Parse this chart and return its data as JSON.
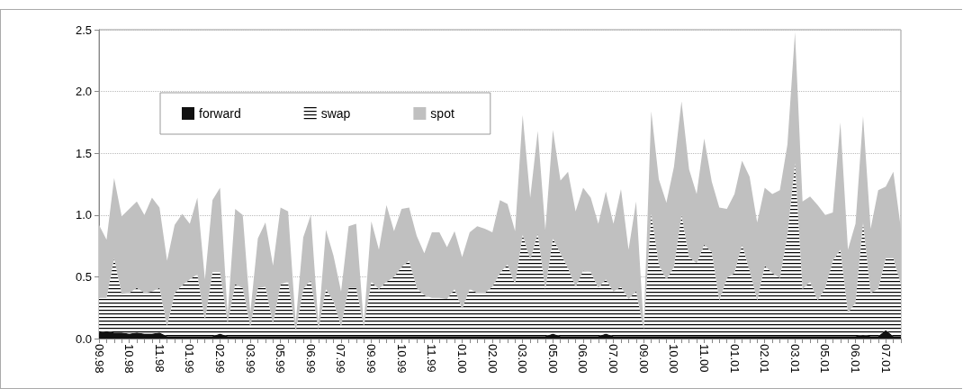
{
  "chart_data": {
    "type": "area",
    "stacked": true,
    "categories": [
      "09.98",
      null,
      null,
      null,
      "10.98",
      null,
      null,
      null,
      "11.98",
      null,
      null,
      null,
      "01.99",
      null,
      null,
      null,
      "02.99",
      null,
      null,
      null,
      "03.99",
      null,
      null,
      null,
      "05.99",
      null,
      null,
      null,
      "06.99",
      null,
      null,
      null,
      "07.99",
      null,
      null,
      null,
      "09.99",
      null,
      null,
      null,
      "10.99",
      null,
      null,
      null,
      "11.99",
      null,
      null,
      null,
      "01.00",
      null,
      null,
      null,
      "02.00",
      null,
      null,
      null,
      "03.00",
      null,
      null,
      null,
      "05.00",
      null,
      null,
      null,
      "06.00",
      null,
      null,
      null,
      "07.00",
      null,
      null,
      null,
      "09.00",
      null,
      null,
      null,
      "10.00",
      null,
      null,
      null,
      "11.00",
      null,
      null,
      null,
      "01.01",
      null,
      null,
      null,
      "02.01",
      null,
      null,
      null,
      "03.01",
      null,
      null,
      null,
      "05.01",
      null,
      null,
      null,
      "06.01",
      null,
      null,
      null,
      "07.01",
      null,
      null
    ],
    "series": [
      {
        "name": "forward",
        "color": "#111111",
        "values": [
          0.05,
          0.06,
          0.05,
          0.05,
          0.04,
          0.05,
          0.04,
          0.04,
          0.05,
          0.02,
          0.02,
          0.02,
          0.02,
          0.02,
          0.02,
          0.02,
          0.04,
          0.02,
          0.02,
          0.02,
          0.02,
          0.02,
          0.02,
          0.02,
          0.02,
          0.02,
          0.02,
          0.02,
          0.02,
          0.02,
          0.02,
          0.02,
          0.02,
          0.02,
          0.02,
          0.02,
          0.02,
          0.02,
          0.02,
          0.02,
          0.02,
          0.02,
          0.02,
          0.02,
          0.02,
          0.02,
          0.02,
          0.02,
          0.02,
          0.02,
          0.02,
          0.02,
          0.02,
          0.02,
          0.02,
          0.02,
          0.02,
          0.02,
          0.02,
          0.02,
          0.04,
          0.02,
          0.02,
          0.02,
          0.02,
          0.02,
          0.02,
          0.04,
          0.02,
          0.02,
          0.02,
          0.02,
          0.02,
          0.02,
          0.02,
          0.02,
          0.02,
          0.02,
          0.02,
          0.02,
          0.02,
          0.02,
          0.02,
          0.02,
          0.02,
          0.02,
          0.02,
          0.02,
          0.02,
          0.02,
          0.02,
          0.02,
          0.02,
          0.02,
          0.02,
          0.02,
          0.02,
          0.02,
          0.02,
          0.02,
          0.02,
          0.03,
          0.02,
          0.02,
          0.07,
          0.02,
          0.02
        ]
      },
      {
        "name": "swap",
        "color": "#000000",
        "values": [
          0.28,
          0.27,
          0.6,
          0.31,
          0.33,
          0.36,
          0.33,
          0.34,
          0.36,
          0.08,
          0.35,
          0.41,
          0.46,
          0.5,
          0.13,
          0.52,
          0.5,
          0.11,
          0.42,
          0.39,
          0.08,
          0.39,
          0.4,
          0.1,
          0.42,
          0.44,
          0.04,
          0.38,
          0.45,
          0.06,
          0.38,
          0.28,
          0.08,
          0.39,
          0.39,
          0.08,
          0.44,
          0.38,
          0.44,
          0.48,
          0.56,
          0.61,
          0.39,
          0.33,
          0.31,
          0.31,
          0.3,
          0.38,
          0.22,
          0.38,
          0.35,
          0.35,
          0.4,
          0.51,
          0.58,
          0.42,
          0.82,
          0.62,
          0.83,
          0.38,
          0.77,
          0.67,
          0.55,
          0.4,
          0.53,
          0.52,
          0.39,
          0.44,
          0.36,
          0.4,
          0.3,
          0.36,
          0.06,
          0.99,
          0.58,
          0.46,
          0.56,
          0.98,
          0.64,
          0.59,
          0.74,
          0.68,
          0.29,
          0.47,
          0.51,
          0.74,
          0.53,
          0.29,
          0.57,
          0.51,
          0.47,
          0.82,
          1.4,
          0.38,
          0.44,
          0.29,
          0.39,
          0.61,
          0.7,
          0.19,
          0.27,
          0.91,
          0.35,
          0.38,
          0.58,
          0.63,
          0.42
        ]
      },
      {
        "name": "spot",
        "color": "#c0c0c0",
        "values": [
          0.59,
          0.47,
          0.65,
          0.63,
          0.68,
          0.7,
          0.63,
          0.76,
          0.65,
          0.53,
          0.55,
          0.58,
          0.45,
          0.62,
          0.33,
          0.58,
          0.68,
          0.06,
          0.61,
          0.59,
          0.11,
          0.4,
          0.52,
          0.47,
          0.62,
          0.57,
          0.07,
          0.42,
          0.53,
          0.04,
          0.48,
          0.37,
          0.28,
          0.5,
          0.52,
          0.02,
          0.49,
          0.32,
          0.62,
          0.37,
          0.47,
          0.43,
          0.42,
          0.34,
          0.53,
          0.53,
          0.42,
          0.47,
          0.42,
          0.46,
          0.54,
          0.52,
          0.44,
          0.59,
          0.49,
          0.43,
          0.97,
          0.5,
          0.83,
          0.48,
          0.88,
          0.59,
          0.78,
          0.61,
          0.67,
          0.6,
          0.52,
          0.71,
          0.55,
          0.79,
          0.4,
          0.73,
          0.02,
          0.83,
          0.69,
          0.62,
          0.81,
          0.92,
          0.71,
          0.56,
          0.86,
          0.57,
          0.75,
          0.56,
          0.64,
          0.68,
          0.76,
          0.63,
          0.63,
          0.64,
          0.71,
          0.73,
          1.06,
          0.71,
          0.69,
          0.77,
          0.59,
          0.39,
          1.03,
          0.51,
          0.64,
          0.86,
          0.52,
          0.8,
          0.58,
          0.7,
          0.45
        ]
      }
    ],
    "ylim": [
      0,
      2.5
    ],
    "yticks": [
      {
        "value": 0,
        "label": "0.0"
      },
      {
        "value": 0.5,
        "label": "0.5"
      },
      {
        "value": 1,
        "label": "1.0"
      },
      {
        "value": 1.5,
        "label": "1.5"
      },
      {
        "value": 2,
        "label": "2.0"
      },
      {
        "value": 2.5,
        "label": "2.5"
      }
    ],
    "grid": "y",
    "legend": "top left"
  }
}
